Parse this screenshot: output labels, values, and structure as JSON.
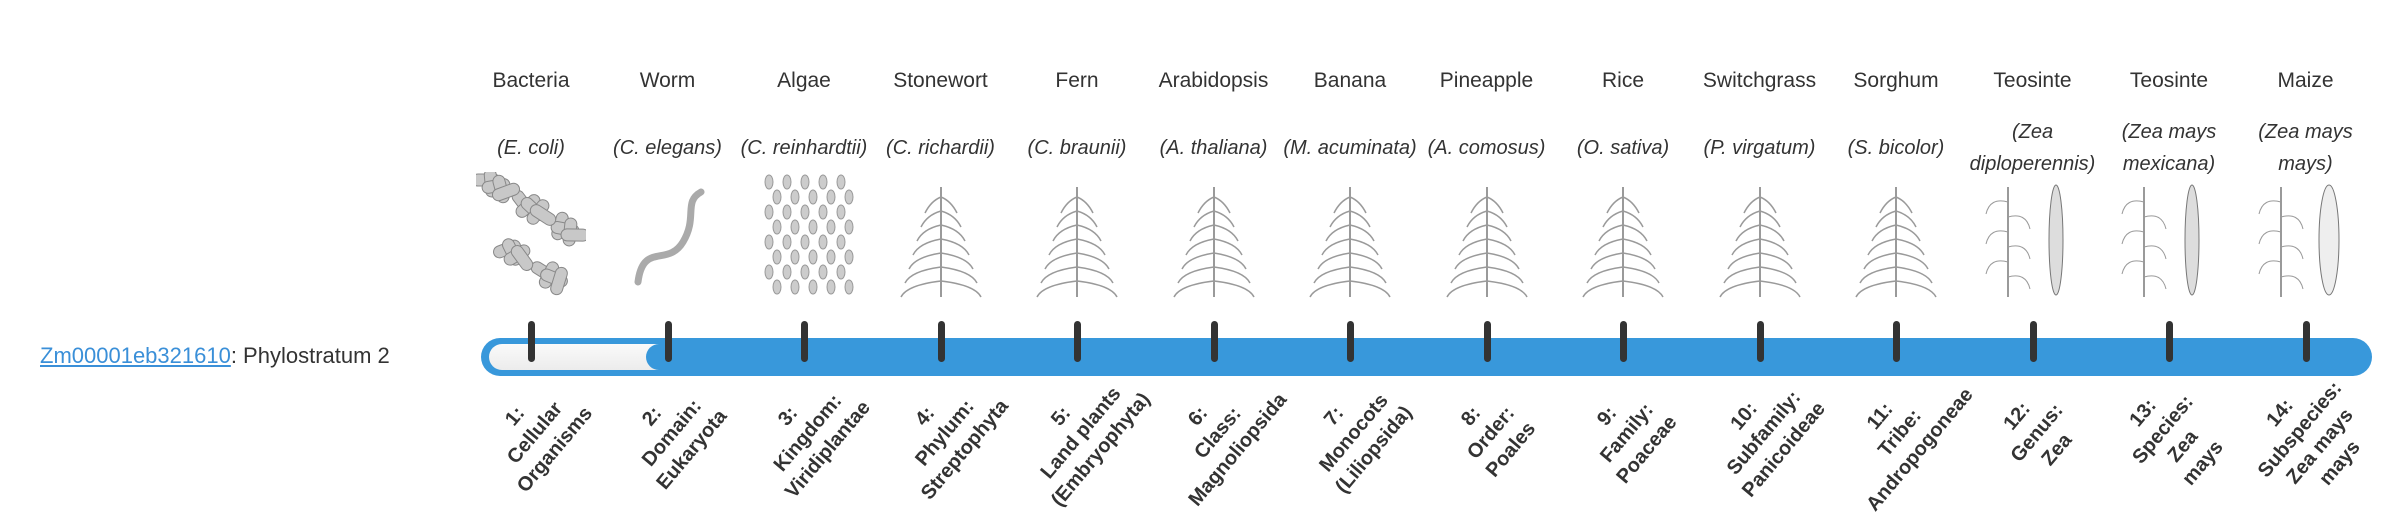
{
  "gene": {
    "id": "Zm00001eb321610",
    "suffix": ": Phylostratum 2",
    "link_color": "#3a8fd8"
  },
  "bar": {
    "color": "#3898db",
    "selected_stratum": 2,
    "total_strata": 14
  },
  "organisms": [
    {
      "common": "Bacteria",
      "species": "(E. coli)",
      "icon": "bacteria-icon"
    },
    {
      "common": "Worm",
      "species": "(C. elegans)",
      "icon": "worm-icon"
    },
    {
      "common": "Algae",
      "species": "(C. reinhardtii)",
      "icon": "algae-icon"
    },
    {
      "common": "Stonewort",
      "species": "(C. richardii)",
      "icon": "stonewort-icon"
    },
    {
      "common": "Fern",
      "species": "(C. braunii)",
      "icon": "fern-icon"
    },
    {
      "common": "Arabidopsis",
      "species": "(A. thaliana)",
      "icon": "arabidopsis-icon"
    },
    {
      "common": "Banana",
      "species": "(M. acuminata)",
      "icon": "banana-icon"
    },
    {
      "common": "Pineapple",
      "species": "(A. comosus)",
      "icon": "pineapple-icon"
    },
    {
      "common": "Rice",
      "species": "(O. sativa)",
      "icon": "rice-icon"
    },
    {
      "common": "Switchgrass",
      "species": "(P. virgatum)",
      "icon": "switchgrass-icon"
    },
    {
      "common": "Sorghum",
      "species": "(S. bicolor)",
      "icon": "sorghum-icon"
    },
    {
      "common": "Teosinte",
      "species": "(Zea diploperennis)",
      "icon": "teosinte-icon"
    },
    {
      "common": "Teosinte",
      "species": "(Zea mays mexicana)",
      "icon": "teosinte-icon"
    },
    {
      "common": "Maize",
      "species": "(Zea mays mays)",
      "icon": "maize-icon"
    }
  ],
  "strata": [
    [
      "1:",
      "Cellular",
      "Organisms"
    ],
    [
      "2:",
      "Domain:",
      "Eukaryota"
    ],
    [
      "3:",
      "Kingdom:",
      "Viridiplantae"
    ],
    [
      "4:",
      "Phylum:",
      "Streptophyta"
    ],
    [
      "5:",
      "Land plants",
      "(Embryophyta)"
    ],
    [
      "6:",
      "Class:",
      "Magnoliopsida"
    ],
    [
      "7:",
      "Monocots",
      "(Liliopsida)"
    ],
    [
      "8:",
      "Order:",
      "Poales"
    ],
    [
      "9:",
      "Family:",
      "Poaceae"
    ],
    [
      "10:",
      "Subfamily:",
      "Panicoideae"
    ],
    [
      "11:",
      "Tribe:",
      "Andropogoneae"
    ],
    [
      "12:",
      "Genus:",
      "Zea"
    ],
    [
      "13:",
      "Species:",
      "Zea",
      "mays"
    ],
    [
      "14:",
      "Subspecies:",
      "Zea mays",
      "mays"
    ]
  ]
}
